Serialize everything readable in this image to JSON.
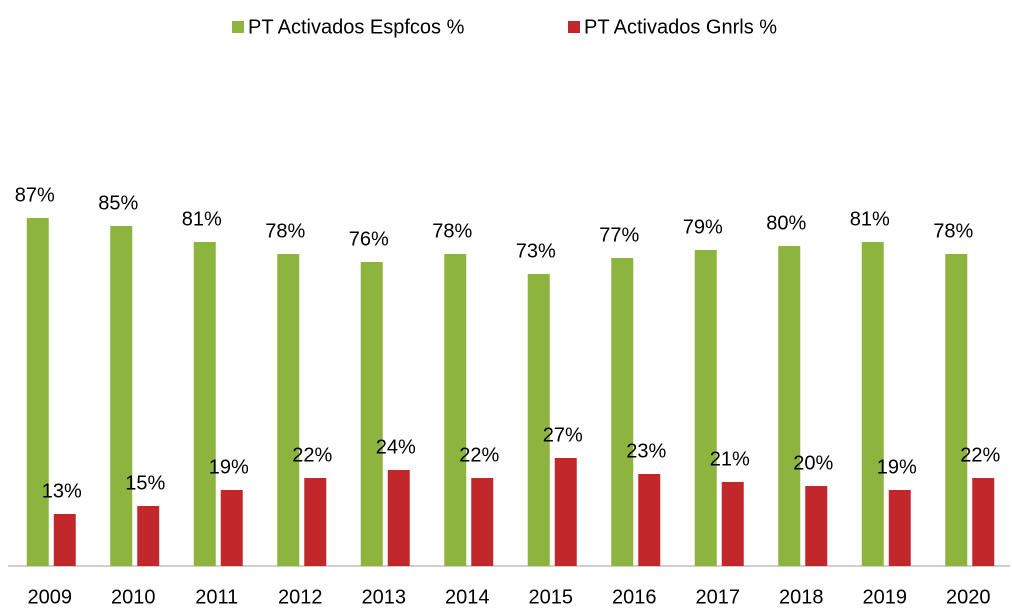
{
  "chart_data": {
    "type": "bar",
    "categories": [
      "2009",
      "2010",
      "2011",
      "2012",
      "2013",
      "2014",
      "2015",
      "2016",
      "2017",
      "2018",
      "2019",
      "2020"
    ],
    "series": [
      {
        "name": "PT Activados Espfcos %",
        "color": "#8db43e",
        "values": [
          87,
          85,
          81,
          78,
          76,
          78,
          73,
          77,
          79,
          80,
          81,
          78
        ],
        "value_labels": [
          "87%",
          "85%",
          "81%",
          "78%",
          "76%",
          "78%",
          "73%",
          "77%",
          "79%",
          "80%",
          "81%",
          "78%"
        ]
      },
      {
        "name": "PT Activados Gnrls %",
        "color": "#c0282c",
        "values": [
          13,
          15,
          19,
          22,
          24,
          22,
          27,
          23,
          21,
          20,
          19,
          22
        ],
        "value_labels": [
          "13%",
          "15%",
          "19%",
          "22%",
          "24%",
          "22%",
          "27%",
          "23%",
          "21%",
          "20%",
          "19%",
          "22%"
        ]
      }
    ],
    "ylim": [
      0,
      100
    ],
    "legend": "top"
  }
}
